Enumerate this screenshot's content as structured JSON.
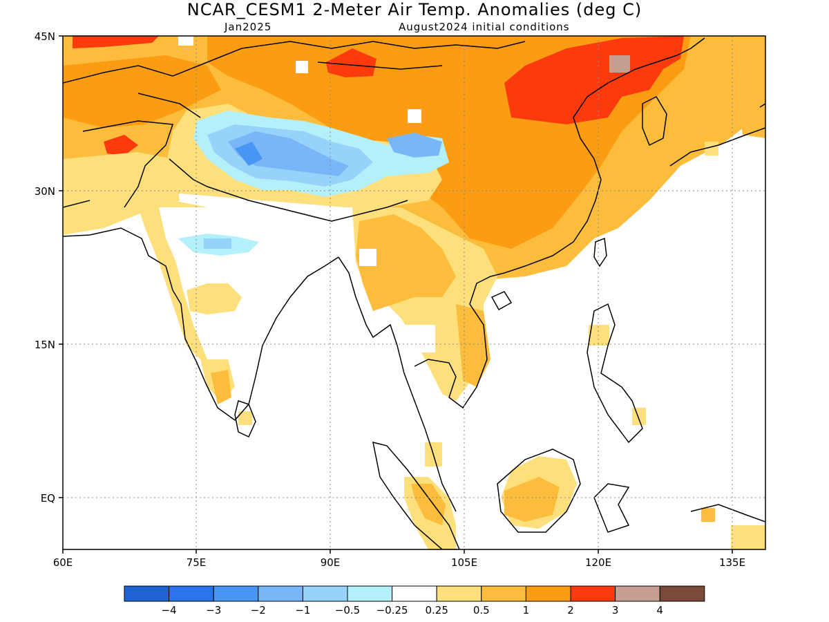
{
  "title": "NCAR_CESM1 2-Meter Air Temp. Anomalies (deg C)",
  "subtitle_left": "Jan2025",
  "subtitle_right": "August2024 initial conditions",
  "lat_labels": [
    "45N",
    "30N",
    "15N",
    "EQ"
  ],
  "lon_labels": [
    "60E",
    "75E",
    "90E",
    "105E",
    "120E",
    "135E"
  ],
  "colorbar": {
    "colors": [
      "#1f63d4",
      "#2a74ec",
      "#4796f3",
      "#78b6f7",
      "#97d2fa",
      "#b4f0fa",
      "#ffffff",
      "#fde07c",
      "#fcbc3c",
      "#fc9c12",
      "#fc3a0c",
      "#c69e92",
      "#7a4a3b"
    ],
    "labels": [
      "−4",
      "−3",
      "−2",
      "−1",
      "−0.5",
      "−0.25",
      "0.25",
      "0.5",
      "1",
      "2",
      "3",
      "4"
    ]
  },
  "icons": {
    "coastline": "coastline-outline-icon"
  }
}
